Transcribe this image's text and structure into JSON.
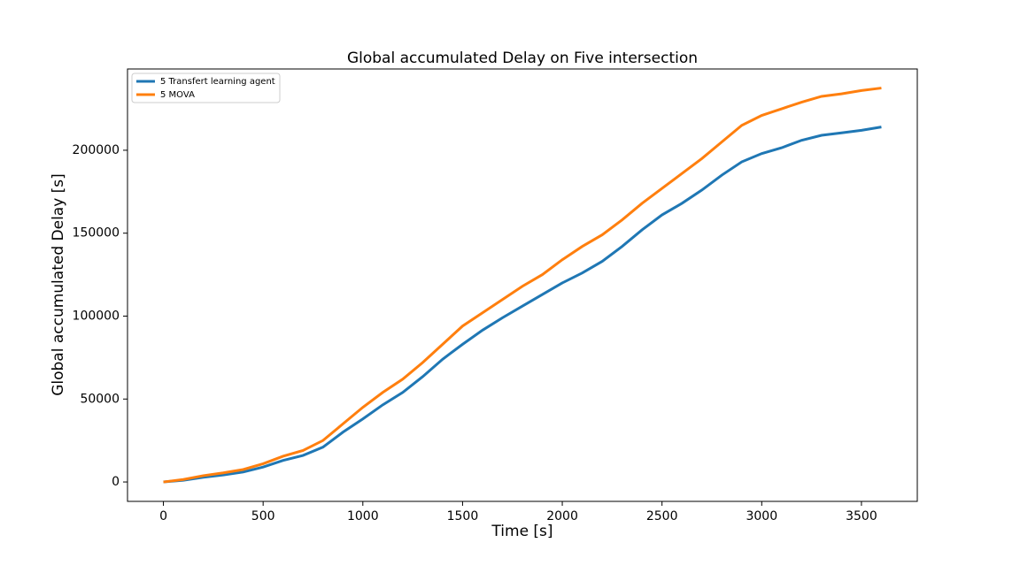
{
  "chart_data": {
    "type": "line",
    "title": "Global accumulated Delay on Five intersection",
    "x_label": "Time [s]",
    "y_label": "Global accumulated Delay [s]",
    "x": [
      0,
      100,
      200,
      300,
      400,
      500,
      600,
      700,
      800,
      900,
      1000,
      1100,
      1200,
      1300,
      1400,
      1500,
      1600,
      1700,
      1800,
      1900,
      2000,
      2100,
      2200,
      2300,
      2400,
      2500,
      2600,
      2700,
      2800,
      2900,
      3000,
      3100,
      3200,
      3300,
      3400,
      3500,
      3600
    ],
    "series": [
      {
        "name": "5 Transfert learning agent",
        "color": "#1f77b4",
        "values": [
          0,
          1000,
          2800,
          4200,
          6000,
          9000,
          13000,
          16000,
          21000,
          30000,
          38000,
          46500,
          54000,
          63500,
          74000,
          83000,
          91500,
          99000,
          106000,
          113000,
          120000,
          126000,
          133000,
          142000,
          152000,
          161000,
          168000,
          176000,
          185000,
          193000,
          198000,
          201500,
          206000,
          209000,
          210500,
          212000,
          214000
        ]
      },
      {
        "name": "5 MOVA",
        "color": "#ff7f0e",
        "values": [
          0,
          1500,
          3800,
          5500,
          7500,
          11000,
          15500,
          19000,
          25000,
          35000,
          45000,
          54000,
          62000,
          72000,
          83000,
          94000,
          102000,
          110000,
          118000,
          125000,
          134000,
          142000,
          149000,
          158000,
          168000,
          177000,
          186000,
          195000,
          205000,
          215000,
          221000,
          225000,
          229000,
          232500,
          234000,
          236000,
          237500
        ]
      }
    ],
    "xlim": [
      -180,
      3780
    ],
    "ylim": [
      -11700,
      249000
    ],
    "xticks": [
      0,
      500,
      1000,
      1500,
      2000,
      2500,
      3000,
      3500
    ],
    "yticks": [
      0,
      50000,
      100000,
      150000,
      200000
    ],
    "legend": "upper left",
    "grid": false
  }
}
